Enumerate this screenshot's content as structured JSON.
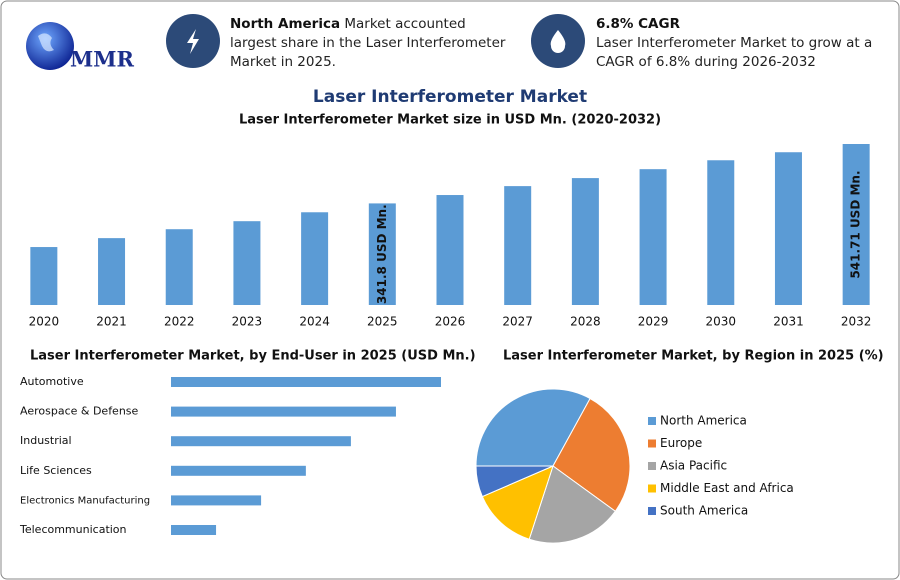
{
  "header": {
    "logo": "MMR",
    "highlights": [
      {
        "bold": "North America",
        "text": "Market accounted largest share in the Laser Interferometer Market in 2025."
      },
      {
        "bold": "6.8% CAGR",
        "text": "Laser Interferometer Market to grow at a CAGR of 6.8% during 2026-2032"
      }
    ]
  },
  "title": "Laser Interferometer Market",
  "chart_data": [
    {
      "type": "bar",
      "title": "Laser Interferometer Market size in USD Mn. (2020-2032)",
      "categories": [
        "2020",
        "2021",
        "2022",
        "2023",
        "2024",
        "2025",
        "2026",
        "2027",
        "2028",
        "2029",
        "2030",
        "2031",
        "2032"
      ],
      "values": [
        195,
        225,
        255,
        282,
        312,
        341.8,
        370,
        400,
        427,
        457,
        487,
        514,
        541.71
      ],
      "value_labels": [
        null,
        null,
        null,
        null,
        null,
        "341.8 USD Mn.",
        null,
        null,
        null,
        null,
        null,
        null,
        "541.71 USD Mn."
      ],
      "color": "#5b9bd5"
    },
    {
      "type": "hbar",
      "title": "Laser Interferometer Market, by End-User in 2025 (USD Mn.)",
      "categories": [
        "Automotive",
        "Aerospace & Defense",
        "Industrial",
        "Life Sciences",
        "Electronics Manufacturing",
        "Telecommunication"
      ],
      "values": [
        97.7,
        81.4,
        65.1,
        48.8,
        32.6,
        16.3
      ],
      "color": "#5b9bd5"
    },
    {
      "type": "pie",
      "title": "Laser Interferometer Market, by Region in 2025 (%)",
      "categories": [
        "North America",
        "Europe",
        "Asia Pacific",
        "Middle East and Africa",
        "South America"
      ],
      "values": [
        33,
        27,
        20,
        13.5,
        6.5
      ],
      "colors": [
        "#5b9bd5",
        "#ed7d31",
        "#a5a5a5",
        "#ffc000",
        "#4472c4"
      ],
      "legend": "right"
    }
  ]
}
